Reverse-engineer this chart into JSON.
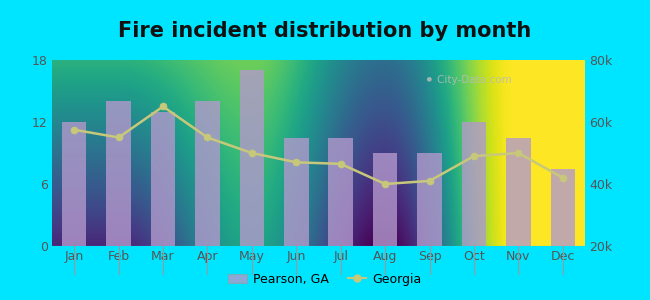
{
  "title": "Fire incident distribution by month",
  "months": [
    "Jan",
    "Feb",
    "Mar",
    "Apr",
    "May",
    "Jun",
    "Jul",
    "Aug",
    "Sep",
    "Oct",
    "Nov",
    "Dec"
  ],
  "pearson_values": [
    12,
    14,
    13,
    14,
    17,
    10.5,
    10.5,
    9,
    9,
    12,
    10.5,
    7.5
  ],
  "georgia_values": [
    57500,
    55000,
    65000,
    55000,
    50000,
    47000,
    46500,
    40000,
    41000,
    49000,
    50000,
    42000
  ],
  "bar_color": "#b399cc",
  "line_color": "#c8c87a",
  "line_marker": "o",
  "line_marker_color": "#c8c87a",
  "background_outer": "#00e5ff",
  "background_inner_top": "#f2f7e8",
  "background_inner_bottom": "#dff0db",
  "ylim_left": [
    0,
    18
  ],
  "ylim_right": [
    20000,
    80000
  ],
  "yticks_left": [
    0,
    6,
    12,
    18
  ],
  "yticks_right": [
    20000,
    40000,
    60000,
    80000
  ],
  "legend_pearson": "Pearson, GA",
  "legend_georgia": "Georgia",
  "title_fontsize": 15,
  "tick_fontsize": 9,
  "watermark_text": "⚫ City-Data.com",
  "watermark_color": "#bbbbbb"
}
